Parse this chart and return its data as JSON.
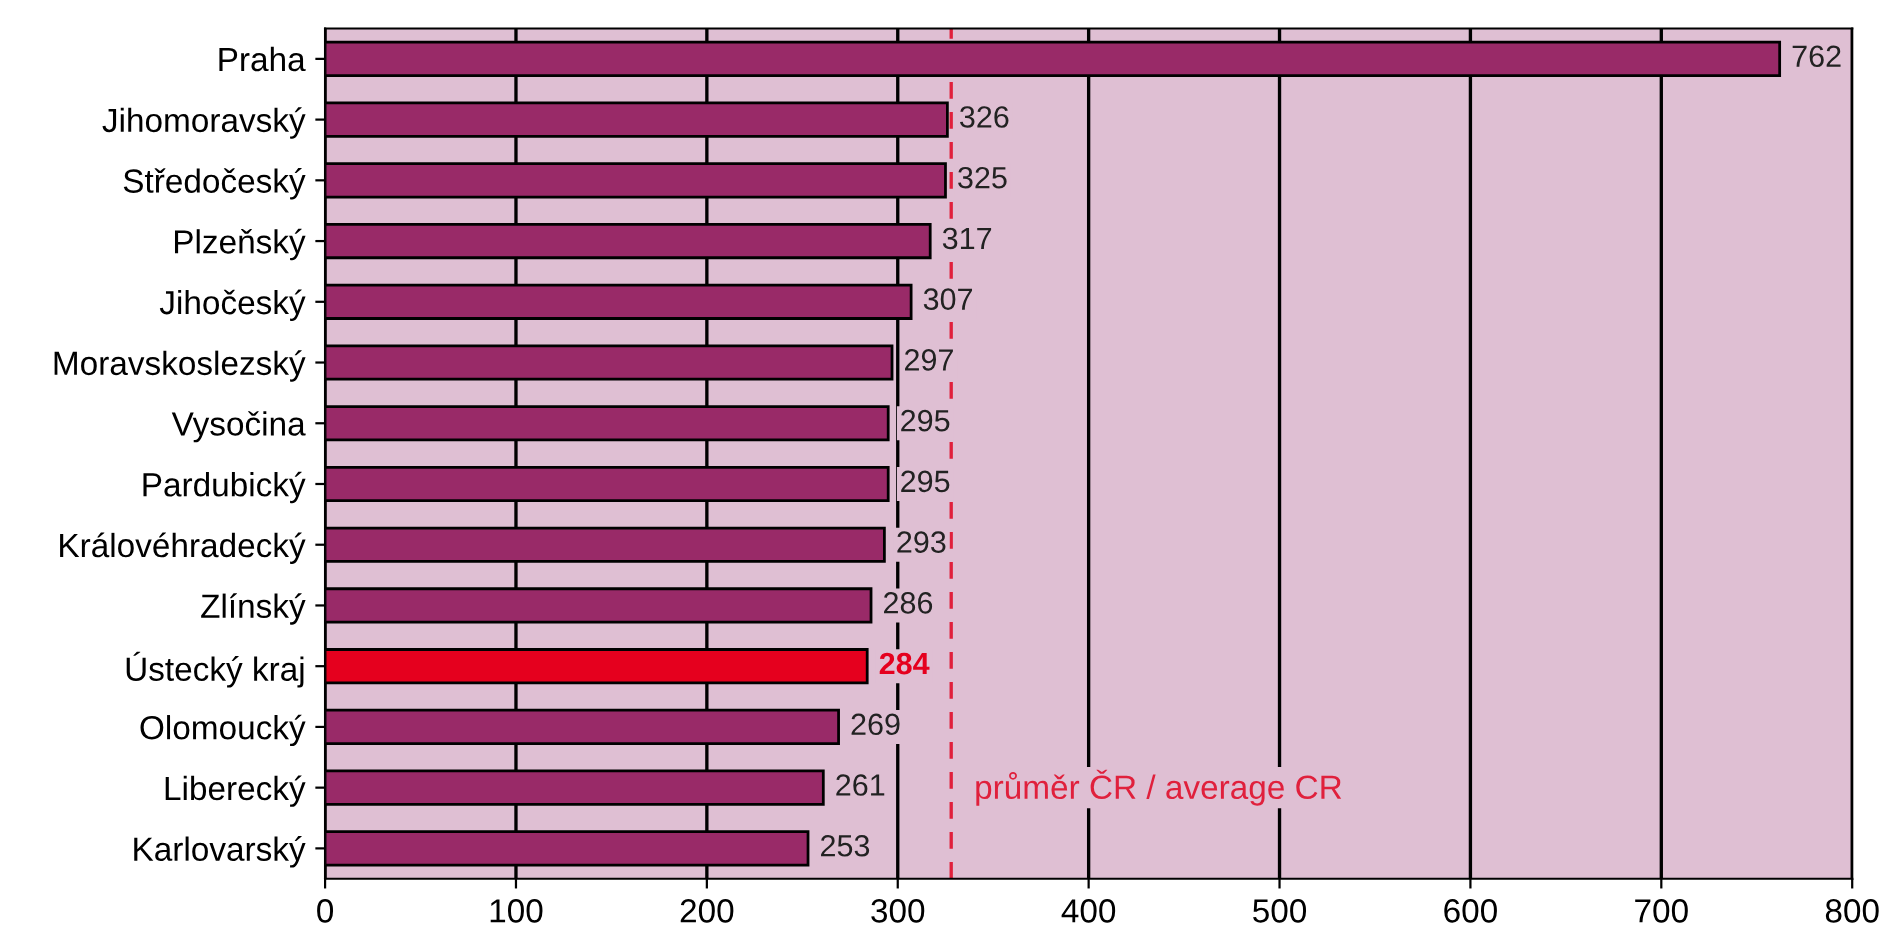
{
  "chart_data": {
    "type": "bar",
    "orientation": "horizontal",
    "categories": [
      "Praha",
      "Jihomoravský",
      "Středočeský",
      "Plzeňský",
      "Jihočeský",
      "Moravskoslezský",
      "Vysočina",
      "Pardubický",
      "Královéhradecký",
      "Zlínský",
      "Ústecký kraj",
      "Olomoucký",
      "Liberecký",
      "Karlovarský"
    ],
    "values": [
      762,
      326,
      325,
      317,
      307,
      297,
      295,
      295,
      293,
      286,
      284,
      269,
      261,
      253
    ],
    "colors": [
      "#992a68",
      "#992a68",
      "#992a68",
      "#992a68",
      "#992a68",
      "#992a68",
      "#992a68",
      "#992a68",
      "#992a68",
      "#992a68",
      "#e5001e",
      "#992a68",
      "#992a68",
      "#992a68"
    ],
    "data_labels": true,
    "xlim": [
      0,
      800
    ],
    "xticks": [
      0,
      100,
      200,
      300,
      400,
      500,
      600,
      700,
      800
    ],
    "grid": "x",
    "ref_lines": [
      {
        "axis": "x",
        "value": 328,
        "label": "průměr ČR / average CR",
        "color": "#e0203c",
        "line_style": "dashed"
      }
    ]
  }
}
